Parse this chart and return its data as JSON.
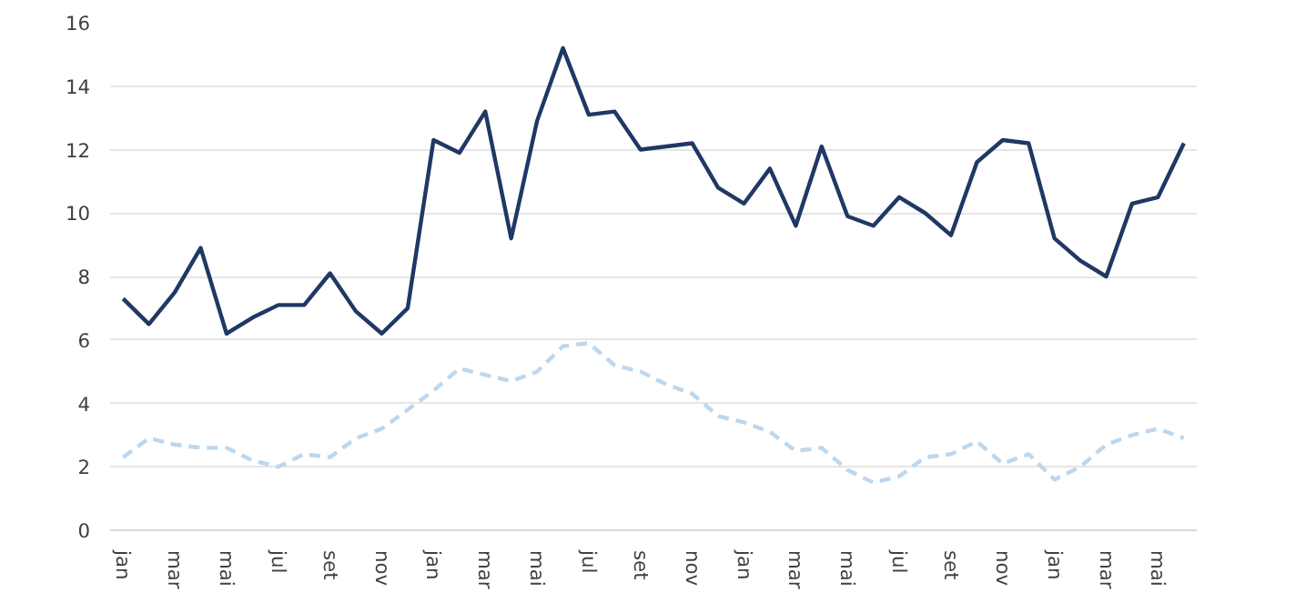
{
  "chart_data": {
    "type": "line",
    "categories": [
      "jan",
      null,
      "mar",
      null,
      "mai",
      null,
      "jul",
      null,
      "set",
      null,
      "nov",
      null,
      "jan",
      null,
      "mar",
      null,
      "mai",
      null,
      "jul",
      null,
      "set",
      null,
      "nov",
      null,
      "jan",
      null,
      "mar",
      null,
      "mai",
      null,
      "jul",
      null,
      "set",
      null,
      "nov",
      null,
      "jan",
      null,
      "mar",
      null,
      "mai",
      null
    ],
    "series": [
      {
        "color": "#1f3864",
        "line_style": "solid",
        "values": [
          7.3,
          6.5,
          7.5,
          8.9,
          6.2,
          6.7,
          7.1,
          7.1,
          8.1,
          6.9,
          6.2,
          7.0,
          12.3,
          11.9,
          13.2,
          9.2,
          12.9,
          15.2,
          13.1,
          13.2,
          12.0,
          12.1,
          12.2,
          10.8,
          10.3,
          11.4,
          9.6,
          12.1,
          9.9,
          9.6,
          10.5,
          10.0,
          9.3,
          11.6,
          12.3,
          12.2,
          9.2,
          8.5,
          8.0,
          10.3,
          10.5,
          12.2
        ]
      },
      {
        "color": "#bdd7ee",
        "line_style": "dashed",
        "values": [
          2.3,
          2.9,
          2.7,
          2.6,
          2.6,
          2.2,
          2.0,
          2.4,
          2.3,
          2.9,
          3.2,
          3.8,
          4.4,
          5.1,
          4.9,
          4.7,
          5.0,
          5.8,
          5.9,
          5.2,
          5.0,
          4.6,
          4.3,
          3.6,
          3.4,
          3.1,
          2.5,
          2.6,
          1.9,
          1.5,
          1.7,
          2.3,
          2.4,
          2.8,
          2.1,
          2.4,
          1.6,
          2.0,
          2.7,
          3.0,
          3.2,
          2.9
        ]
      }
    ],
    "ylim": [
      0,
      16
    ],
    "yticks": [
      0,
      2,
      4,
      6,
      8,
      10,
      12,
      14,
      16
    ],
    "grid": "y",
    "marker": "none"
  }
}
